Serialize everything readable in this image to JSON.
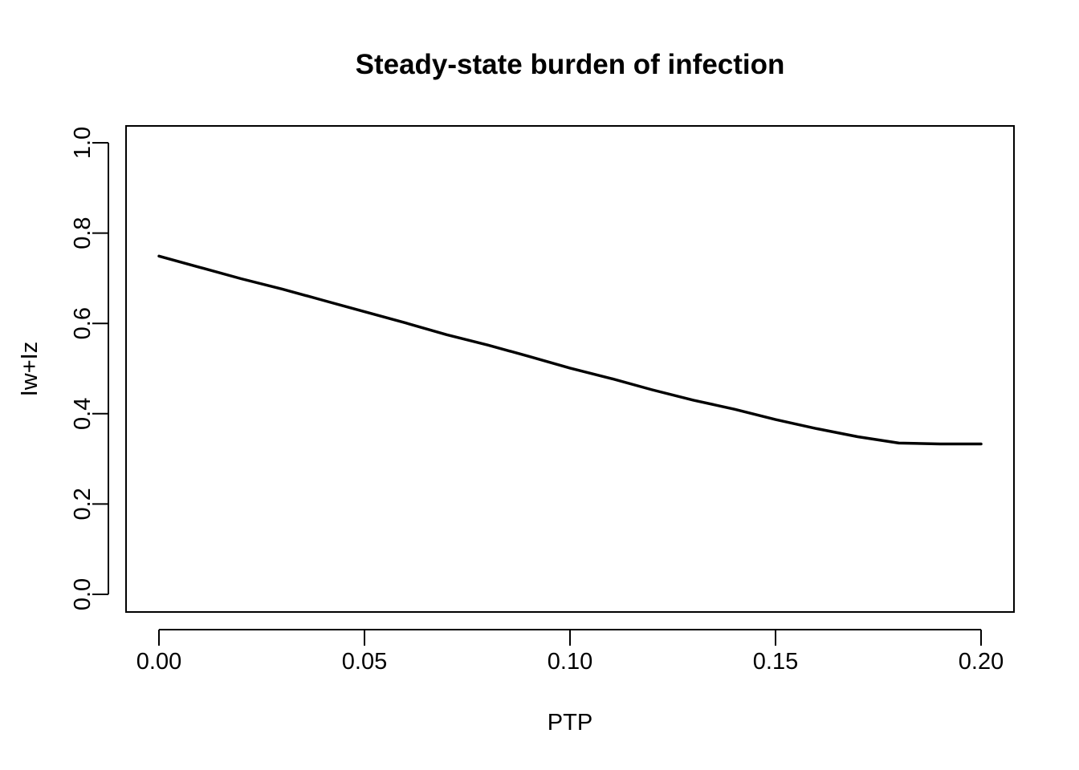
{
  "chart_data": {
    "type": "line",
    "title": "Steady-state burden of infection",
    "xlabel": "PTP",
    "ylabel": "Iw+Iz",
    "xlim": [
      0.0,
      0.2
    ],
    "ylim": [
      0.0,
      1.0
    ],
    "x_ticks": [
      "0.00",
      "0.05",
      "0.10",
      "0.15",
      "0.20"
    ],
    "y_ticks": [
      "0.0",
      "0.2",
      "0.4",
      "0.6",
      "0.8",
      "1.0"
    ],
    "grid": false,
    "series": [
      {
        "x": [
          0.0,
          0.01,
          0.02,
          0.03,
          0.04,
          0.05,
          0.06,
          0.07,
          0.08,
          0.09,
          0.1,
          0.11,
          0.12,
          0.13,
          0.14,
          0.15,
          0.16,
          0.17,
          0.18,
          0.19,
          0.2
        ],
        "y": [
          0.749,
          0.724,
          0.699,
          0.676,
          0.651,
          0.626,
          0.601,
          0.575,
          0.552,
          0.527,
          0.501,
          0.478,
          0.453,
          0.43,
          0.41,
          0.387,
          0.367,
          0.349,
          0.335,
          0.333,
          0.333
        ]
      }
    ]
  }
}
